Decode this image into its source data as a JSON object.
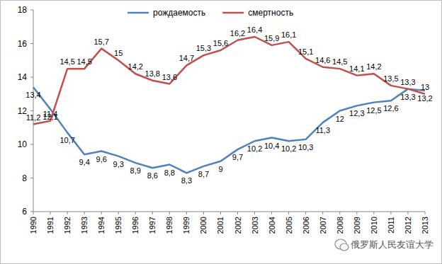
{
  "chart_data": {
    "type": "line",
    "categories": [
      "1990",
      "1991",
      "1992",
      "1993",
      "1994",
      "1995",
      "1996",
      "1997",
      "1998",
      "1999",
      "2000",
      "2001",
      "2002",
      "2003",
      "2004",
      "2005",
      "2006",
      "2007",
      "2008",
      "2009",
      "2010",
      "2011",
      "2012",
      "2013"
    ],
    "series": [
      {
        "name": "рождаемость",
        "color": "#4f81bd",
        "values": [
          13.4,
          12.1,
          10.7,
          9.4,
          9.6,
          9.3,
          8.9,
          8.6,
          8.8,
          8.3,
          8.7,
          9,
          9.7,
          10.2,
          10.4,
          10.2,
          10.3,
          11.3,
          12,
          12.3,
          12.5,
          12.6,
          13.3,
          13.2
        ],
        "value_labels": [
          "13,4",
          "12,1",
          "10,7",
          "9,4",
          "9,6",
          "9,3",
          "8,9",
          "8,6",
          "8,8",
          "8,3",
          "8,7",
          "9",
          "9,7",
          "10,2",
          "10,4",
          "10,2",
          "10,3",
          "11,3",
          "12",
          "12,3",
          "12,5",
          "12,6",
          "13,3",
          "13,2"
        ]
      },
      {
        "name": "смертность",
        "color": "#c0504d",
        "values": [
          11.2,
          11.4,
          14.5,
          14.5,
          15.7,
          15,
          14.2,
          13.8,
          13.6,
          14.7,
          15.3,
          15.6,
          16.2,
          16.4,
          15.9,
          16.1,
          15.1,
          14.6,
          14.5,
          14.1,
          14.2,
          13.5,
          13.3,
          13
        ],
        "value_labels": [
          "11,2",
          "11,4",
          "14,5",
          "14,5",
          "15,7",
          "15",
          "14,2",
          "13,8",
          "13,6",
          "14,7",
          "15,3",
          "15,6",
          "16,2",
          "16,4",
          "15,9",
          "16,1",
          "15,1",
          "14,6",
          "14,5",
          "14,1",
          "14,2",
          "13,5",
          "13,3",
          "13"
        ]
      }
    ],
    "ylim": [
      6,
      18
    ],
    "yticks": [
      6,
      8,
      10,
      12,
      14,
      16,
      18
    ],
    "grid": false,
    "legend": "top",
    "data_labels": true,
    "annotations": [
      "俄罗斯人民友谊大学"
    ]
  }
}
